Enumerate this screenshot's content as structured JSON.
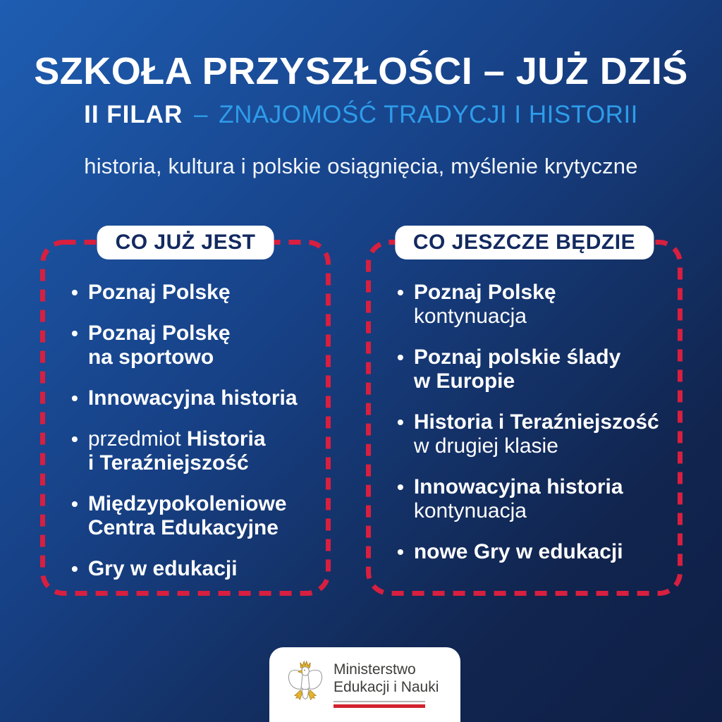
{
  "theme": {
    "bg_gradient_start": "#1e5db2",
    "bg_gradient_end": "#0f1f45",
    "accent_light_blue": "#2e9ce9",
    "dashed_border_red": "#d81f3f",
    "panel_header_navy": "#132a60",
    "flag_red": "#d2232e",
    "eagle_gold": "#e3b42d",
    "text_white": "#ffffff"
  },
  "header": {
    "title": "SZKOŁA PRZYSZŁOŚCI – JUŻ DZIŚ",
    "pillar": "II FILAR",
    "separator": "–",
    "topic": "ZNAJOMOŚĆ TRADYCJI I HISTORII",
    "tagline": "historia, kultura i polskie osiągnięcia, myślenie krytyczne"
  },
  "columns": [
    {
      "header": "CO JUŻ JEST",
      "items": [
        {
          "segments": [
            {
              "t": "Poznaj Polskę",
              "b": true
            }
          ]
        },
        {
          "segments": [
            {
              "t": "Poznaj Polskę\nna sportowo",
              "b": true
            }
          ]
        },
        {
          "segments": [
            {
              "t": "Innowacyjna historia",
              "b": true
            }
          ]
        },
        {
          "segments": [
            {
              "t": "przedmiot ",
              "b": false
            },
            {
              "t": "Historia\ni Teraźniejszość",
              "b": true
            }
          ]
        },
        {
          "segments": [
            {
              "t": "Międzypokoleniowe\nCentra Edukacyjne",
              "b": true
            }
          ]
        },
        {
          "segments": [
            {
              "t": "Gry w edukacji",
              "b": true
            }
          ]
        }
      ]
    },
    {
      "header": "CO JESZCZE BĘDZIE",
      "items": [
        {
          "segments": [
            {
              "t": "Poznaj Polskę",
              "b": true
            },
            {
              "t": " kontynuacja",
              "b": false
            }
          ]
        },
        {
          "segments": [
            {
              "t": "Poznaj polskie ślady\nw Europie",
              "b": true
            }
          ]
        },
        {
          "segments": [
            {
              "t": "Historia i Teraźniejszość",
              "b": true
            },
            {
              "t": "\nw drugiej klasie",
              "b": false
            }
          ]
        },
        {
          "segments": [
            {
              "t": "Innowacyjna historia",
              "b": true
            },
            {
              "t": "\nkontynuacja",
              "b": false
            }
          ]
        },
        {
          "segments": [
            {
              "t": "nowe Gry w edukacji",
              "b": true
            }
          ]
        }
      ]
    }
  ],
  "footer": {
    "ministry_line1": "Ministerstwo",
    "ministry_line2": "Edukacji i Nauki"
  }
}
